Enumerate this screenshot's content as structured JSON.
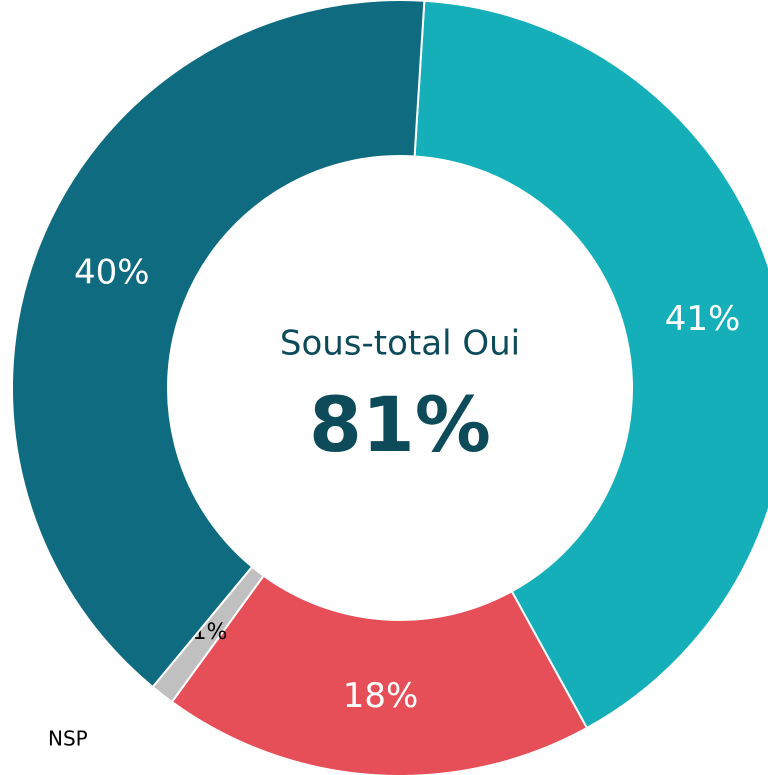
{
  "chart_data": {
    "type": "donut",
    "categories": [
      null,
      null,
      "NSP",
      null
    ],
    "values": [
      41,
      18,
      1,
      40
    ],
    "value_labels": [
      "41%",
      "18%",
      "1%",
      "40%"
    ],
    "colors": [
      "#14afb8",
      "#e64f58",
      "#c0c0c0",
      "#0f6b80"
    ],
    "center_label": "Sous-total Oui",
    "center_value": 81,
    "center_value_label": "81%"
  }
}
